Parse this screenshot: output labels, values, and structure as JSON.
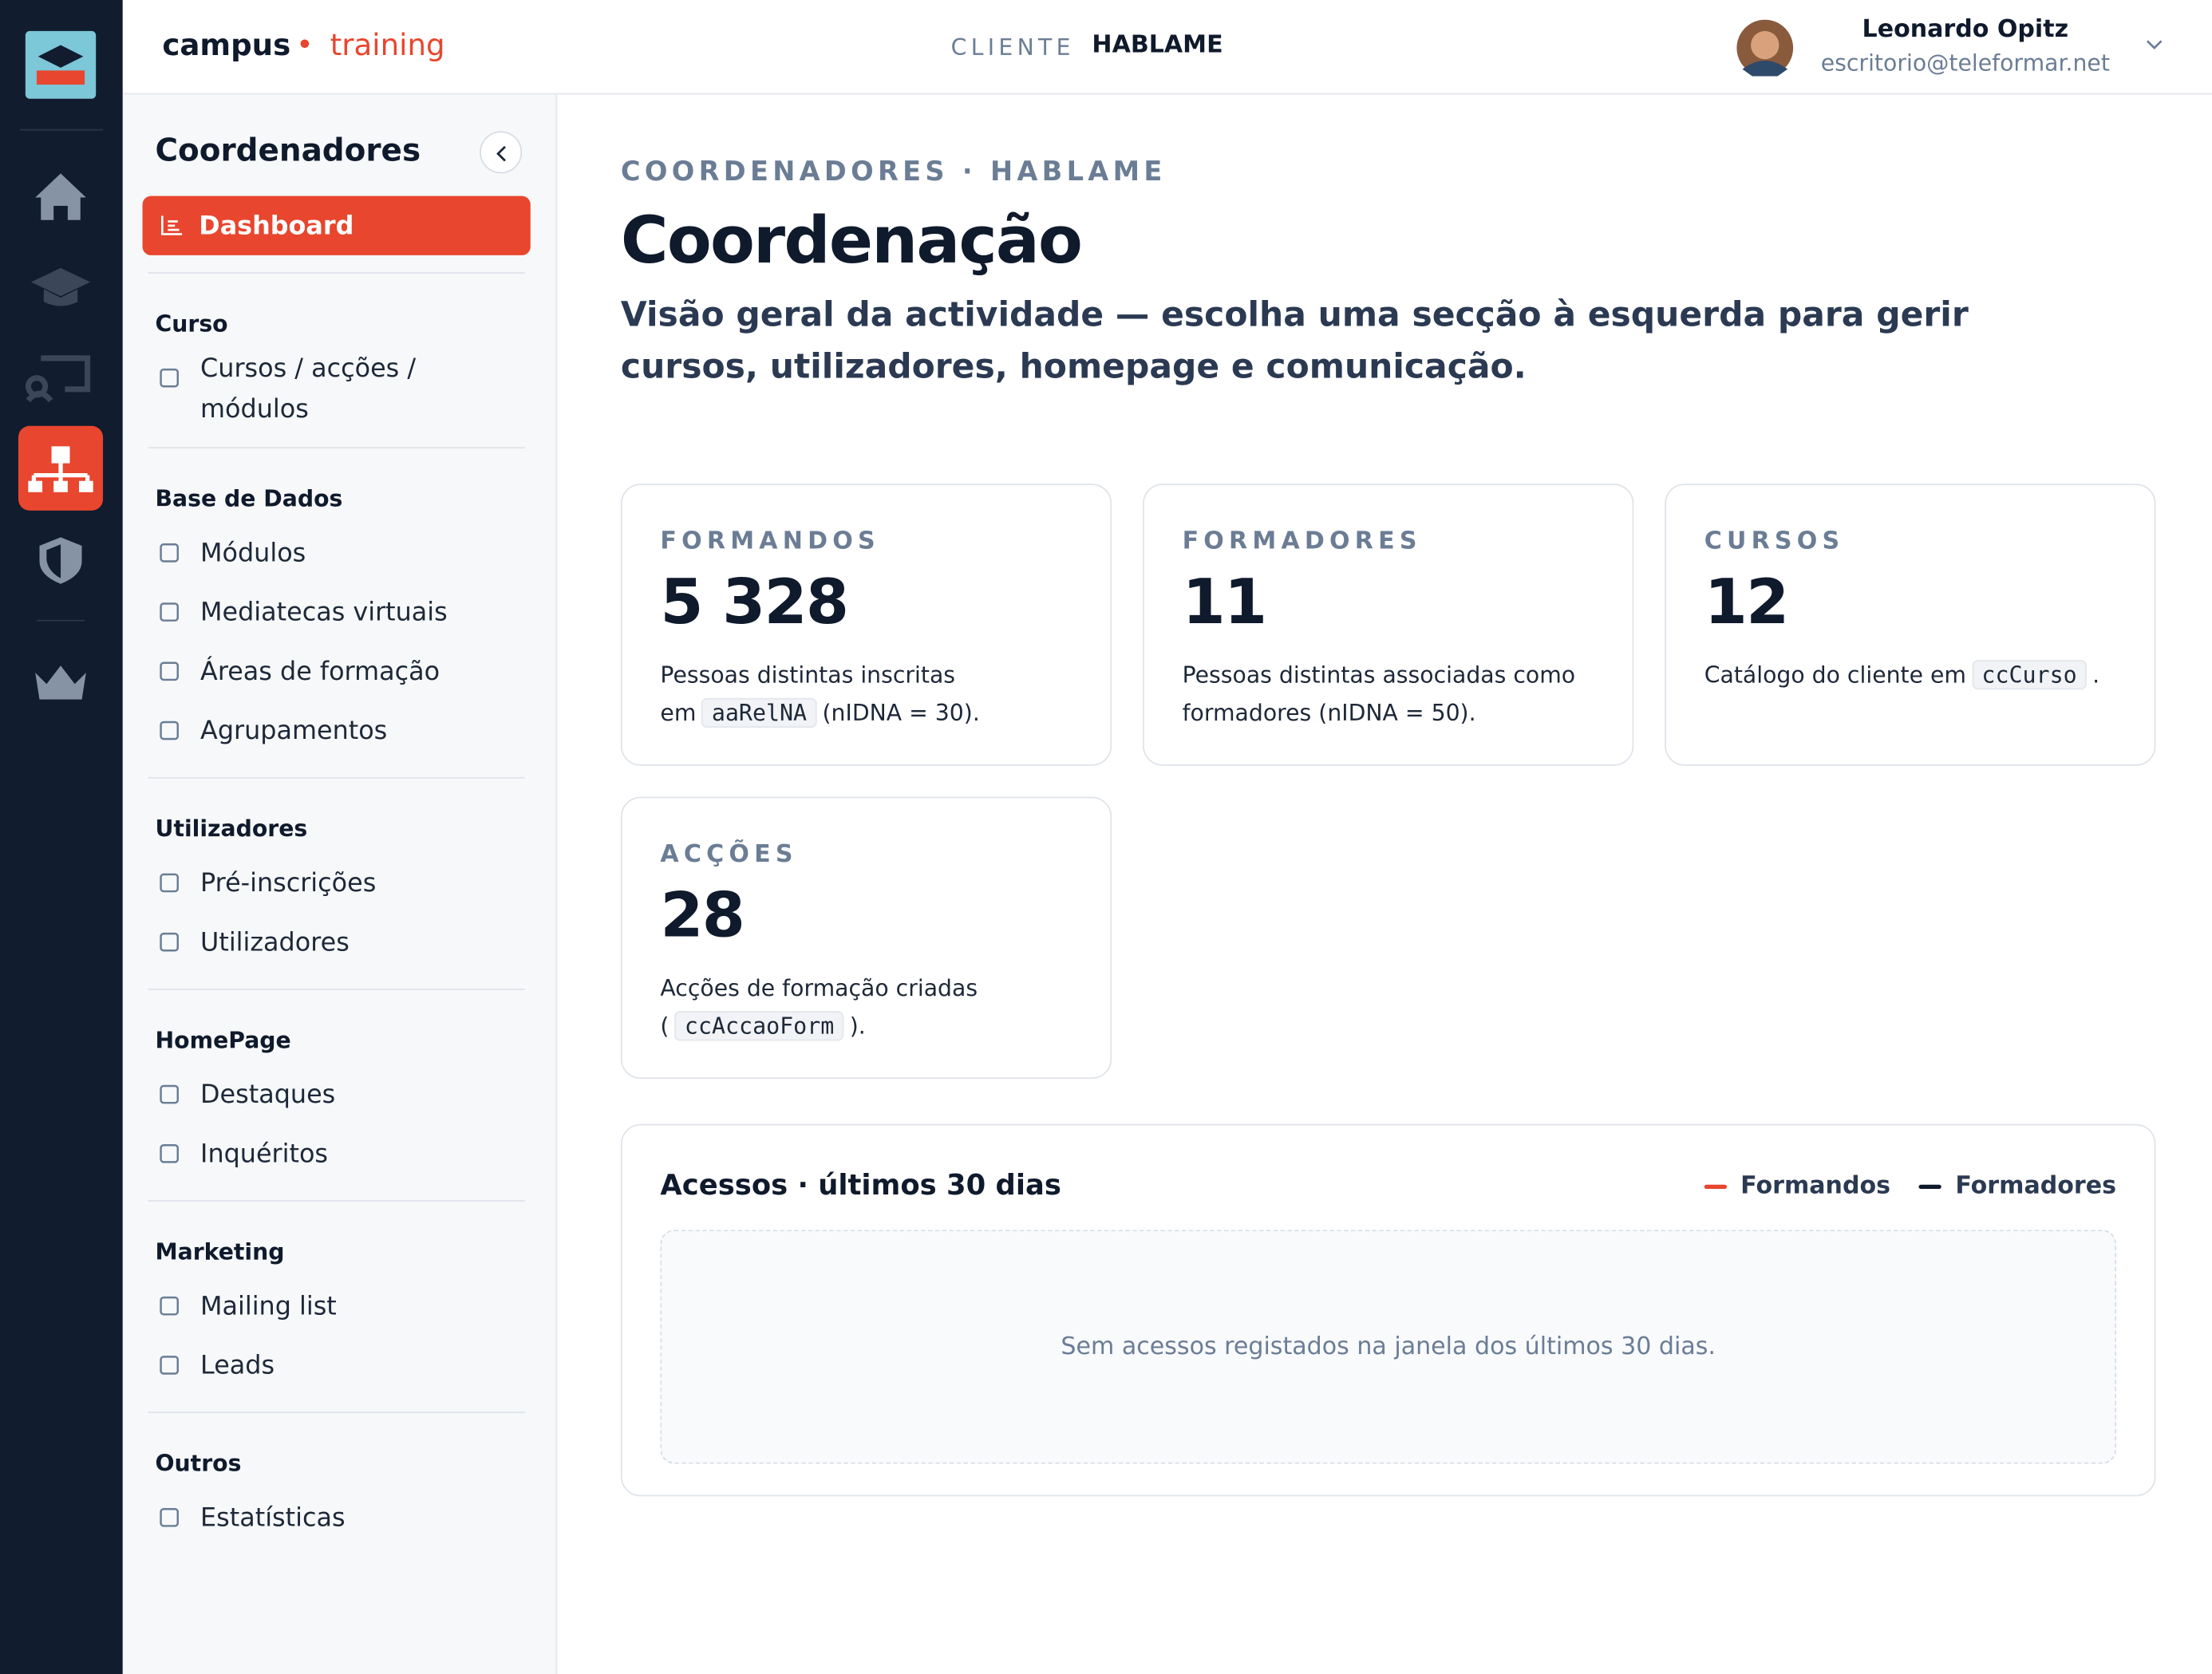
{
  "header": {
    "brand": "campus",
    "brand_accent": "training",
    "client_label": "CLIENTE",
    "client": "HABLAME",
    "user_name": "Leonardo Opitz",
    "user_email": "escritorio@teleformar.net"
  },
  "sidebar": {
    "title": "Coordenadores",
    "active_item": "Dashboard",
    "sections": [
      {
        "title": "Curso",
        "items": [
          "Cursos / acções / módulos"
        ]
      },
      {
        "title": "Base de Dados",
        "items": [
          "Módulos",
          "Mediatecas virtuais",
          "Áreas de formação",
          "Agrupamentos"
        ]
      },
      {
        "title": "Utilizadores",
        "items": [
          "Pré-inscrições",
          "Utilizadores"
        ]
      },
      {
        "title": "HomePage",
        "items": [
          "Destaques",
          "Inquéritos"
        ]
      },
      {
        "title": "Marketing",
        "items": [
          "Mailing list",
          "Leads"
        ]
      },
      {
        "title": "Outros",
        "items": [
          "Estatísticas"
        ]
      }
    ]
  },
  "main": {
    "breadcrumb": "COORDENADORES · HABLAME",
    "title": "Coordenação",
    "description": "Visão geral da actividade — escolha uma secção à esquerda para gerir cursos, utilizadores, homepage e comunicação.",
    "cards": [
      {
        "label": "FORMANDOS",
        "value": "5 328",
        "text_before": "Pessoas distintas inscritas em",
        "code": "aaRelNA",
        "text_after": "(nIDNA = 30)."
      },
      {
        "label": "FORMADORES",
        "value": "11",
        "text_before": "Pessoas distintas associadas como formadores (nIDNA = 50)."
      },
      {
        "label": "CURSOS",
        "value": "12",
        "text_before": "Catálogo do cliente em",
        "code": "ccCurso",
        "text_after": "."
      },
      {
        "label": "ACÇÕES",
        "value": "28",
        "text_before": "Acções de formação criadas (",
        "code": "ccAccaoForm",
        "text_after": ")."
      }
    ],
    "activity_panel": {
      "title": "Acessos · últimos 30 dias",
      "legend": [
        {
          "name": "Formandos",
          "color": "#e8462e"
        },
        {
          "name": "Formadores",
          "color": "#0f1a2c"
        }
      ],
      "empty_message": "Sem acessos registados na janela dos últimos 30 dias."
    }
  }
}
